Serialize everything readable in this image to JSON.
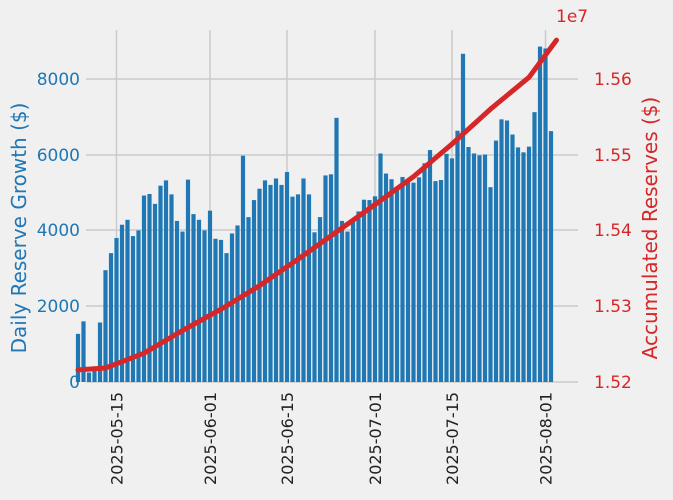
{
  "chart_data": {
    "type": "bar+line",
    "x_start": "2025-05-08",
    "x_ticks": [
      "2025-05-15",
      "2025-06-01",
      "2025-06-15",
      "2025-07-01",
      "2025-07-15",
      "2025-08-01"
    ],
    "y_left": {
      "label": "Daily Reserve Growth ($)",
      "ticks": [
        "0",
        "2000",
        "4000",
        "6000",
        "8000"
      ],
      "ylim": [
        0,
        9300
      ],
      "color": "#1f77b4"
    },
    "y_right": {
      "label": "Accumulated Reserves ($)",
      "ticks": [
        "1.52",
        "1.53",
        "1.54",
        "1.55",
        "1.56"
      ],
      "offset_text": "1e7",
      "ylim": [
        15200000,
        15670000
      ],
      "color": "#d62728"
    },
    "bars": {
      "name": "Daily Reserve Growth",
      "color": "#1f77b4",
      "values": [
        1270,
        1600,
        250,
        300,
        1570,
        2950,
        3400,
        3800,
        4150,
        4280,
        3850,
        4000,
        4920,
        4960,
        4700,
        5180,
        5320,
        4950,
        4250,
        3970,
        5340,
        4430,
        4280,
        4000,
        4520,
        3780,
        3750,
        3400,
        3920,
        4130,
        5970,
        4350,
        4800,
        5100,
        5320,
        5200,
        5370,
        5200,
        5540,
        4890,
        4950,
        5370,
        4950,
        3950,
        4350,
        5450,
        5480,
        6970,
        4250,
        3970,
        4250,
        4500,
        4810,
        4800,
        4900,
        6030,
        5500,
        5350,
        5150,
        5410,
        5270,
        5260,
        5400,
        5770,
        6120,
        5300,
        5330,
        6020,
        5900,
        6630,
        8660,
        6200,
        6030,
        5980,
        6000,
        5140,
        6370,
        6930,
        6900,
        6530,
        6190,
        6060,
        6210,
        7120,
        8850,
        8800,
        6620
      ]
    },
    "line": {
      "name": "Accumulated Reserves",
      "color": "#d62728",
      "points": [
        [
          "2025-05-08",
          15216000
        ],
        [
          "2025-05-13",
          15218500
        ],
        [
          "2025-05-20",
          15238000
        ],
        [
          "2025-05-27",
          15268000
        ],
        [
          "2025-06-03",
          15296000
        ],
        [
          "2025-06-10",
          15327000
        ],
        [
          "2025-06-17",
          15362000
        ],
        [
          "2025-06-24",
          15398000
        ],
        [
          "2025-07-01",
          15434000
        ],
        [
          "2025-07-08",
          15471000
        ],
        [
          "2025-07-15",
          15514000
        ],
        [
          "2025-07-22",
          15560000
        ],
        [
          "2025-07-29",
          15602000
        ],
        [
          "2025-08-03",
          15651000
        ]
      ]
    }
  }
}
